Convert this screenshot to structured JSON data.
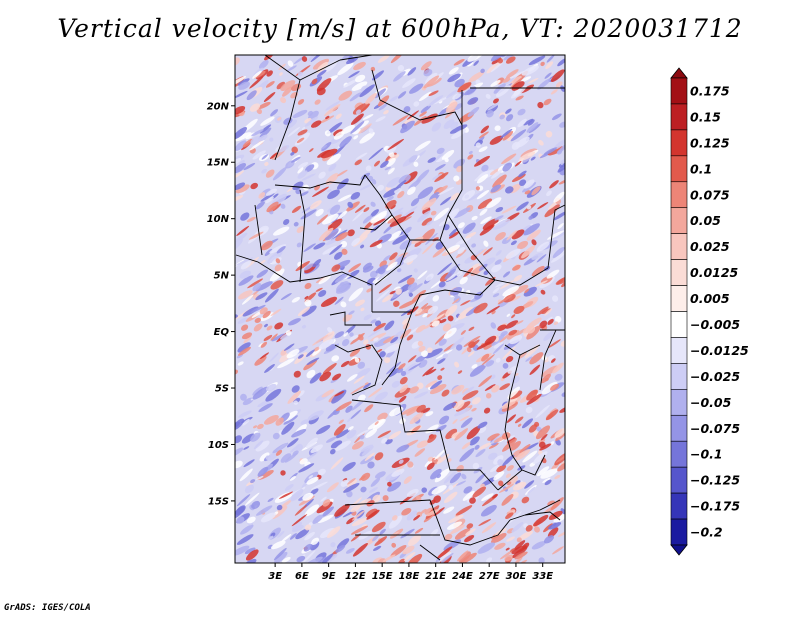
{
  "title": "Vertical velocity [m/s] at 600hPa, VT: 2020031712",
  "credit": "GrADS: IGES/COLA",
  "map": {
    "lon_range": [
      -1.5,
      35.5
    ],
    "lat_range": [
      -20.5,
      24.5
    ],
    "lat_ticks": [
      {
        "value": 20,
        "label": "20N"
      },
      {
        "value": 15,
        "label": "15N"
      },
      {
        "value": 10,
        "label": "10N"
      },
      {
        "value": 5,
        "label": "5N"
      },
      {
        "value": 0,
        "label": "EQ"
      },
      {
        "value": -5,
        "label": "5S"
      },
      {
        "value": -10,
        "label": "10S"
      },
      {
        "value": -15,
        "label": "15S"
      }
    ],
    "lon_ticks": [
      {
        "value": 3,
        "label": "3E"
      },
      {
        "value": 6,
        "label": "6E"
      },
      {
        "value": 9,
        "label": "9E"
      },
      {
        "value": 12,
        "label": "12E"
      },
      {
        "value": 15,
        "label": "15E"
      },
      {
        "value": 18,
        "label": "18E"
      },
      {
        "value": 21,
        "label": "21E"
      },
      {
        "value": 24,
        "label": "24E"
      },
      {
        "value": 27,
        "label": "27E"
      },
      {
        "value": 30,
        "label": "30E"
      },
      {
        "value": 33,
        "label": "33E"
      }
    ]
  },
  "colorbar": {
    "levels": [
      {
        "label": "0.175",
        "color": "#a31016"
      },
      {
        "label": "0.15",
        "color": "#bd1f23"
      },
      {
        "label": "0.125",
        "color": "#d3352e"
      },
      {
        "label": "0.1",
        "color": "#e25a4c"
      },
      {
        "label": "0.075",
        "color": "#ed8577"
      },
      {
        "label": "0.05",
        "color": "#f3a79c"
      },
      {
        "label": "0.025",
        "color": "#f8c6be"
      },
      {
        "label": "0.0125",
        "color": "#fbdcd6"
      },
      {
        "label": "0.005",
        "color": "#fdeeea"
      },
      {
        "label": "−0.005",
        "color": "#ffffff"
      },
      {
        "label": "−0.0125",
        "color": "#e6e6fa"
      },
      {
        "label": "−0.025",
        "color": "#cdcdf5"
      },
      {
        "label": "−0.05",
        "color": "#b0b0ee"
      },
      {
        "label": "−0.075",
        "color": "#9494e6"
      },
      {
        "label": "−0.1",
        "color": "#7575da"
      },
      {
        "label": "−0.125",
        "color": "#5656cc"
      },
      {
        "label": "−0.175",
        "color": "#3535b8"
      },
      {
        "label": "−0.2",
        "color": "#1b1ba0"
      }
    ],
    "top_color": "#8c0a10",
    "bottom_color": "#10108c"
  }
}
